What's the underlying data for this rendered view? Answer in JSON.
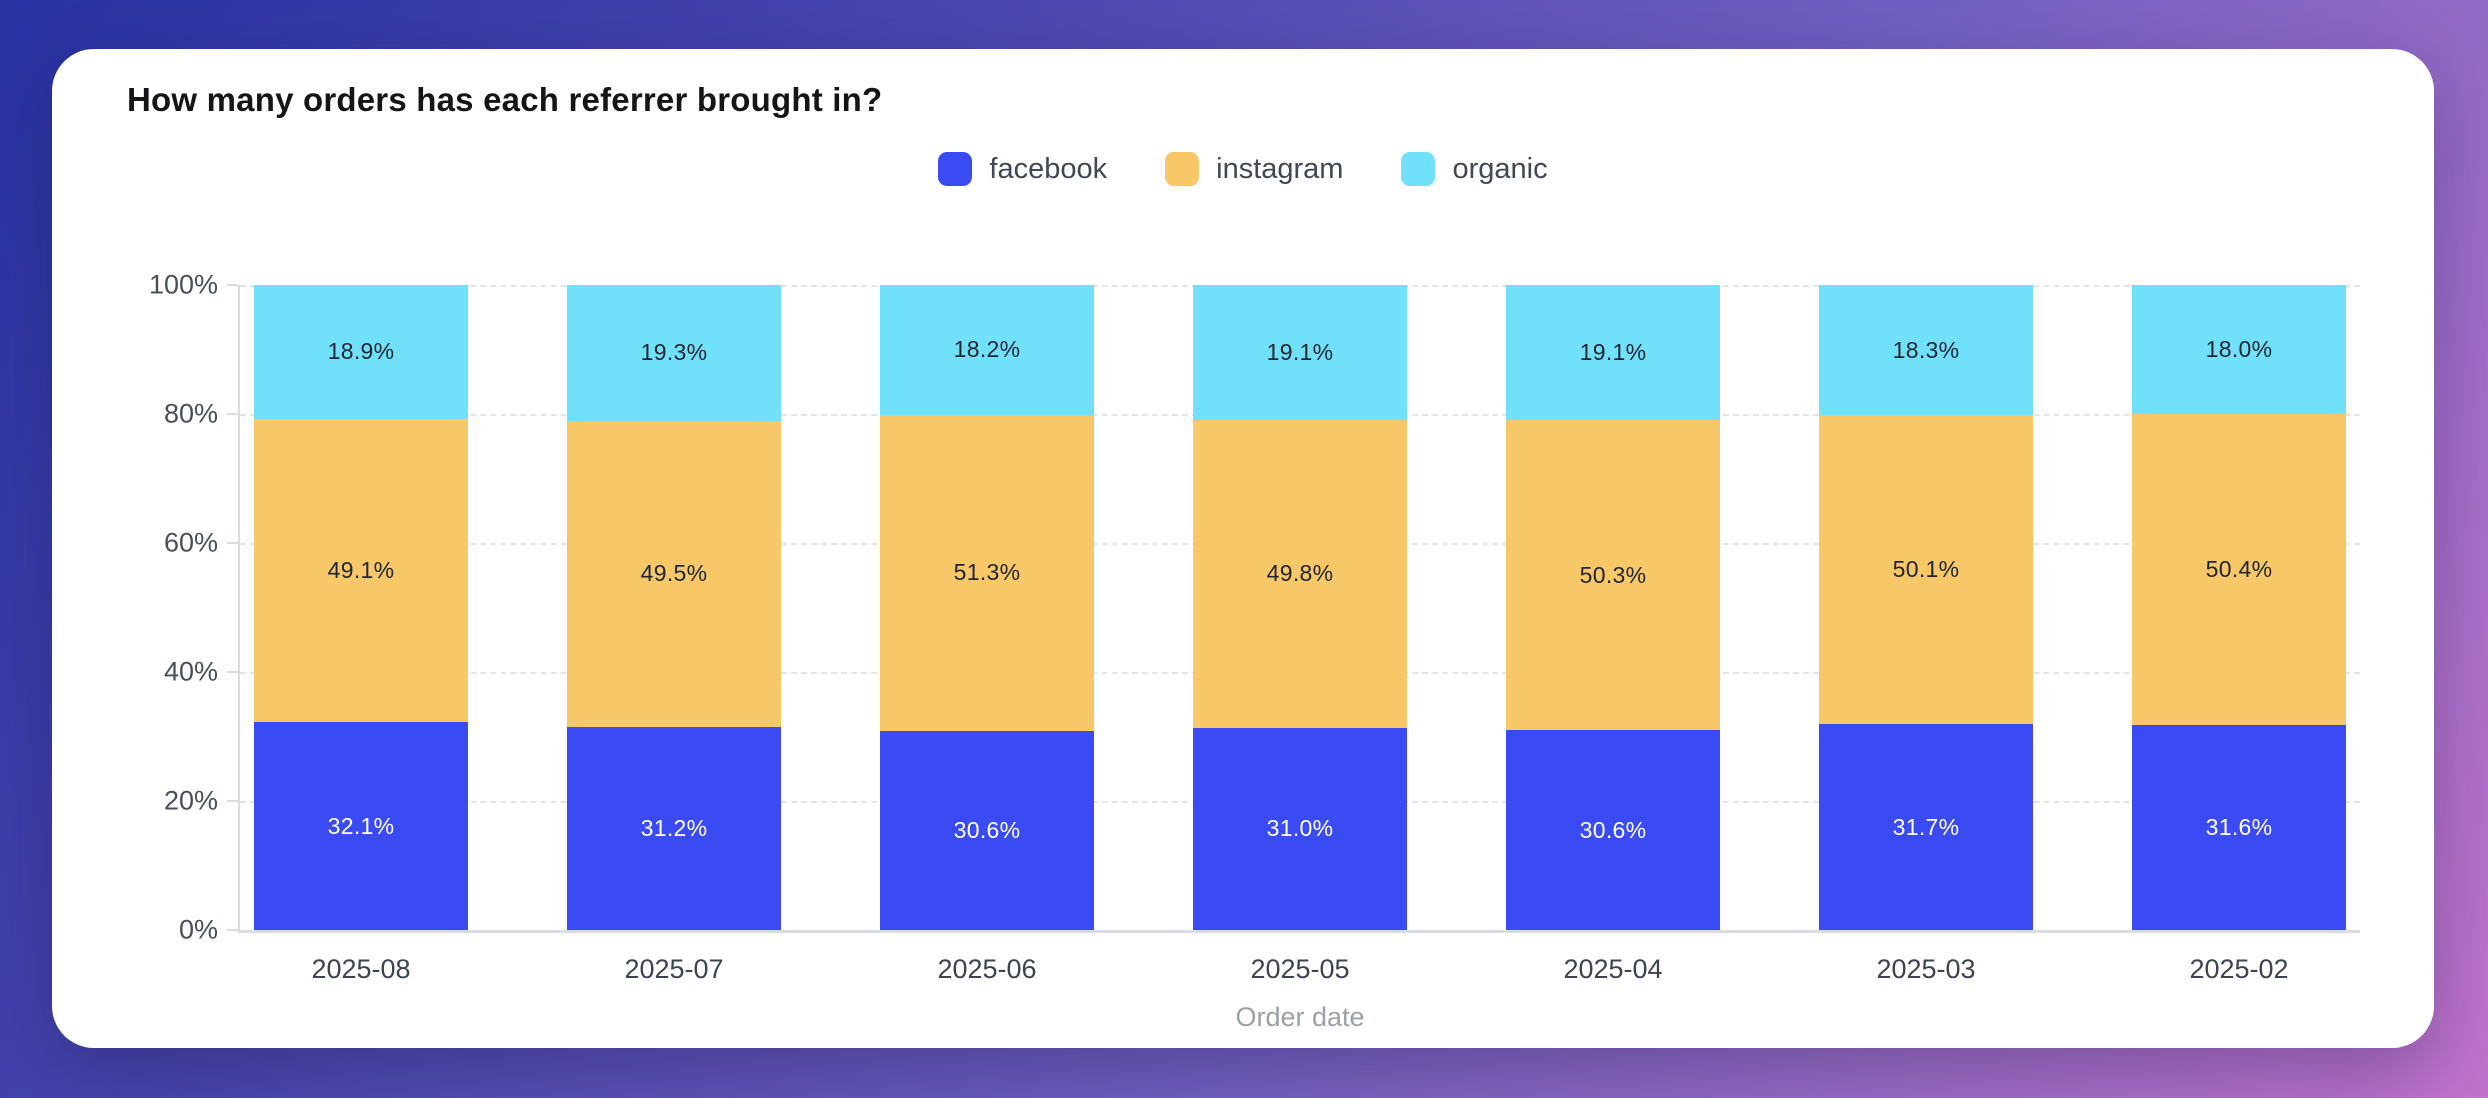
{
  "card": {
    "title": "How many orders has each referrer brought in?"
  },
  "legend": [
    {
      "label": "facebook",
      "color": "#3a4bf4"
    },
    {
      "label": "instagram",
      "color": "#f7c768"
    },
    {
      "label": "organic",
      "color": "#71e1fb"
    }
  ],
  "chart_data": {
    "type": "bar",
    "stacked": true,
    "title": "How many orders has each referrer brought in?",
    "xlabel": "Order date",
    "ylabel": "",
    "ylim": [
      0,
      100
    ],
    "value_suffix": "%",
    "grid": "dashed-horizontal",
    "legend_position": "top-center",
    "categories": [
      "2025-08",
      "2025-07",
      "2025-06",
      "2025-05",
      "2025-04",
      "2025-03",
      "2025-02"
    ],
    "y_ticks": [
      {
        "value": 0,
        "label": "0%"
      },
      {
        "value": 20,
        "label": "20%"
      },
      {
        "value": 40,
        "label": "40%"
      },
      {
        "value": 60,
        "label": "60%"
      },
      {
        "value": 80,
        "label": "80%"
      },
      {
        "value": 100,
        "label": "100%"
      }
    ],
    "series": [
      {
        "name": "facebook",
        "color": "#3a4bf4",
        "label_color": "#ffffff",
        "values": [
          32.1,
          31.2,
          30.6,
          31.0,
          30.6,
          31.7,
          31.6
        ],
        "labels": [
          "32.1%",
          "31.2%",
          "30.6%",
          "31.0%",
          "30.6%",
          "31.7%",
          "31.6%"
        ]
      },
      {
        "name": "instagram",
        "color": "#f7c768",
        "label_color": "#1f2630",
        "values": [
          49.1,
          49.5,
          51.3,
          49.8,
          50.3,
          50.1,
          50.4
        ],
        "labels": [
          "49.1%",
          "49.5%",
          "51.3%",
          "49.8%",
          "50.3%",
          "50.1%",
          "50.4%"
        ]
      },
      {
        "name": "organic",
        "color": "#71e1fb",
        "label_color": "#1f2630",
        "values": [
          18.9,
          19.3,
          18.2,
          19.1,
          19.1,
          18.3,
          18.0
        ],
        "labels": [
          "18.9%",
          "19.3%",
          "18.2%",
          "19.1%",
          "19.1%",
          "18.3%",
          "18.0%"
        ]
      }
    ]
  }
}
